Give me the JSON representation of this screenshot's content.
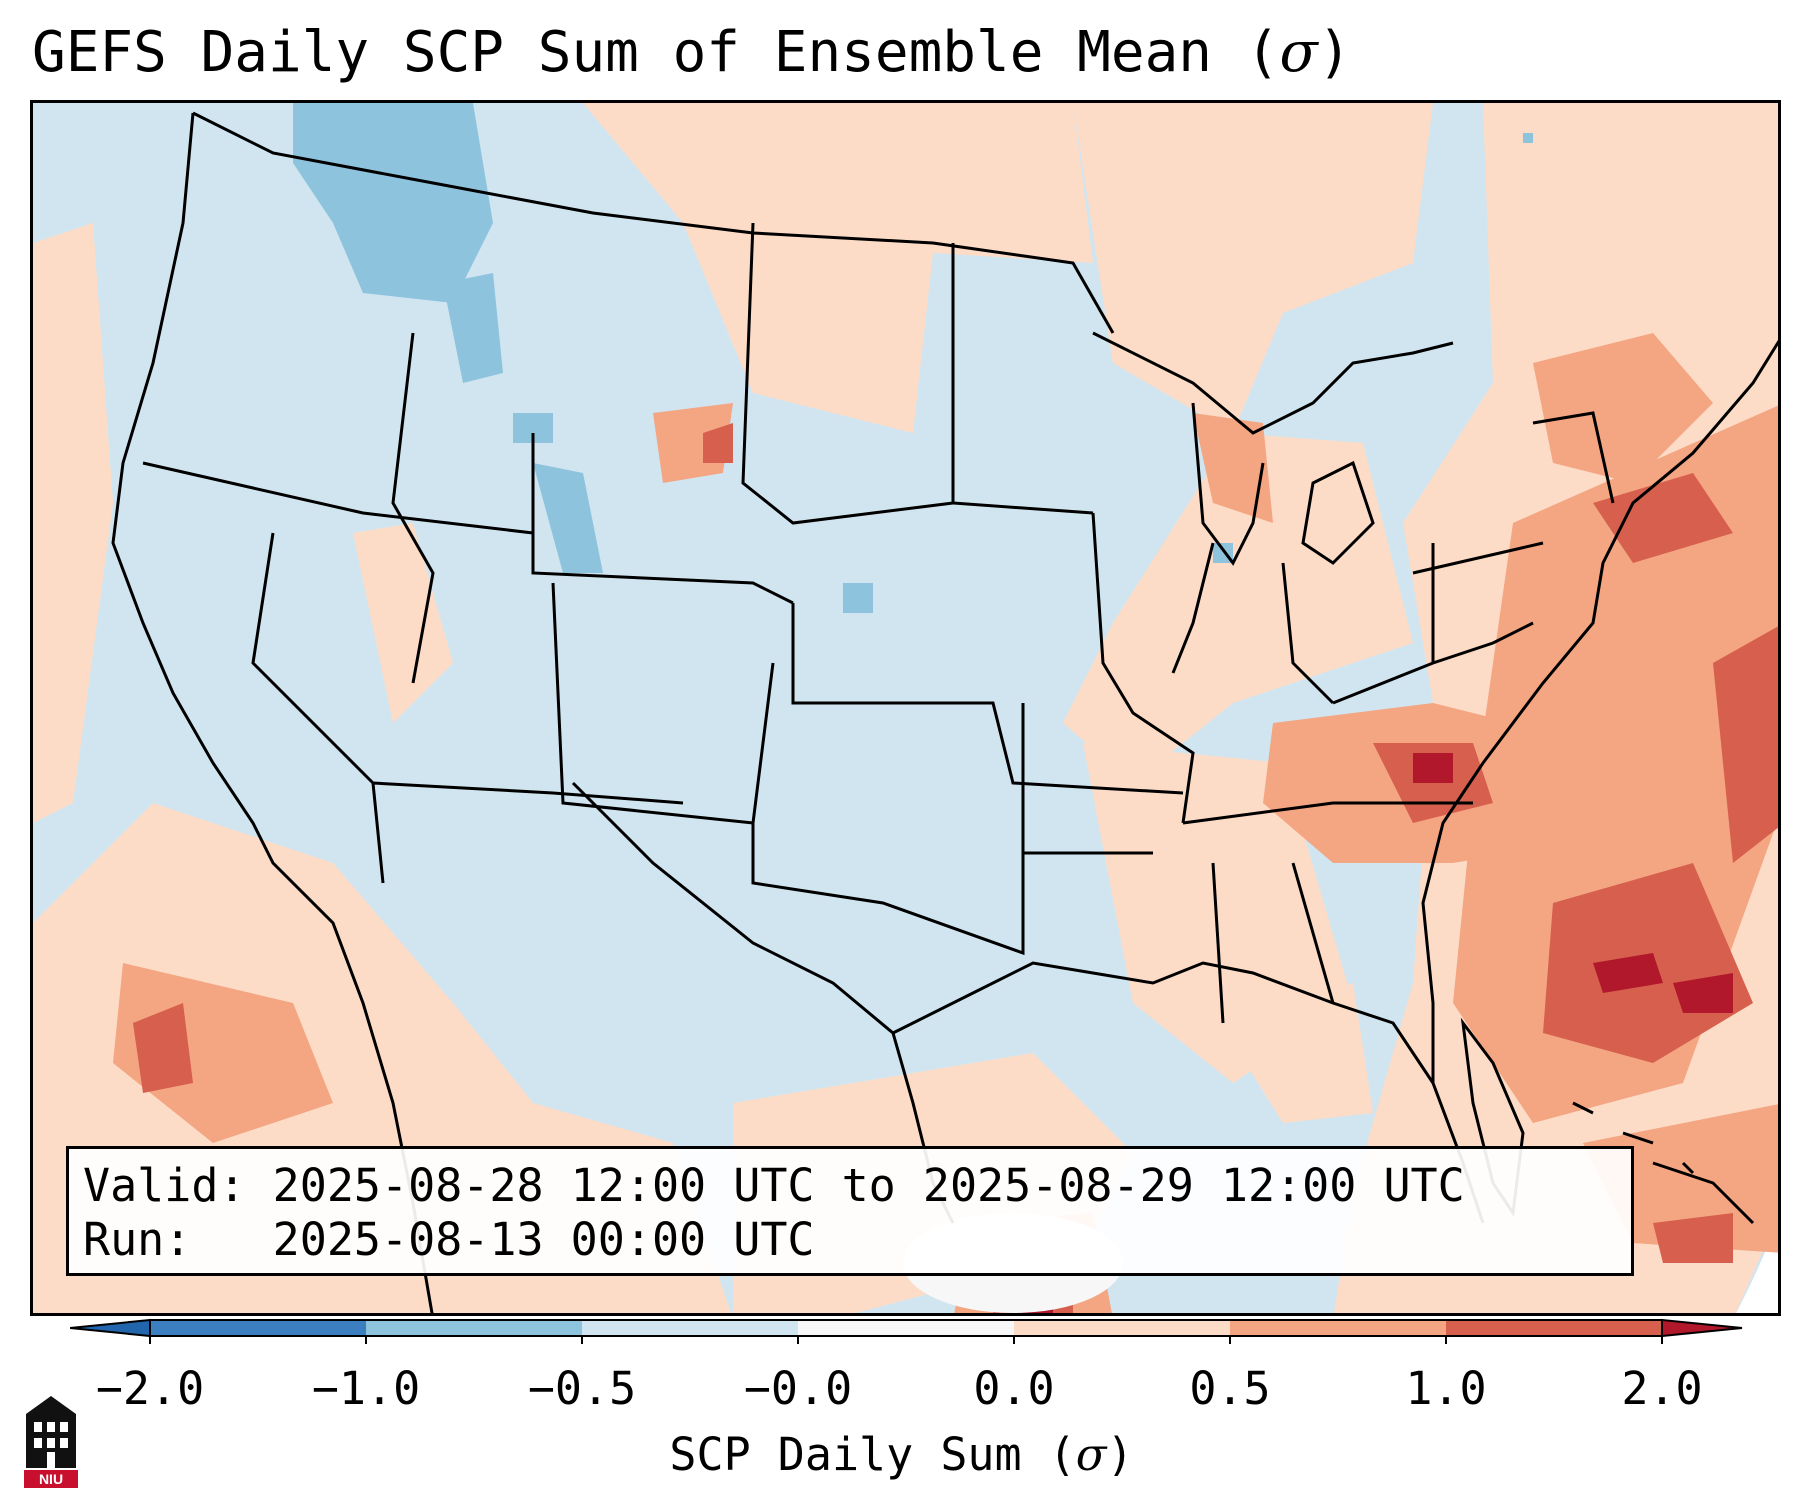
{
  "title": "GEFS Daily SCP Sum of Ensemble Mean (",
  "title_symbol": "σ",
  "title_close": ")",
  "info": {
    "valid_label": "Valid:",
    "valid_value": "2025-08-28 12:00 UTC to 2025-08-29 12:00 UTC",
    "run_label": "Run:",
    "run_value": "2025-08-13 00:00 UTC"
  },
  "colorbar": {
    "ticks": [
      "−2.0",
      "−1.0",
      "−0.5",
      "−0.0",
      "0.0",
      "0.5",
      "1.0",
      "2.0"
    ],
    "colors": [
      "#3b7fc0",
      "#8ec3de",
      "#d1e5f0",
      "#f7f7f7",
      "#fcdcc7",
      "#f4a582",
      "#d6604d",
      "#b2182b"
    ],
    "label": "SCP Daily Sum (",
    "label_symbol": "σ",
    "label_close": ")"
  },
  "logo_text": "NIU"
}
